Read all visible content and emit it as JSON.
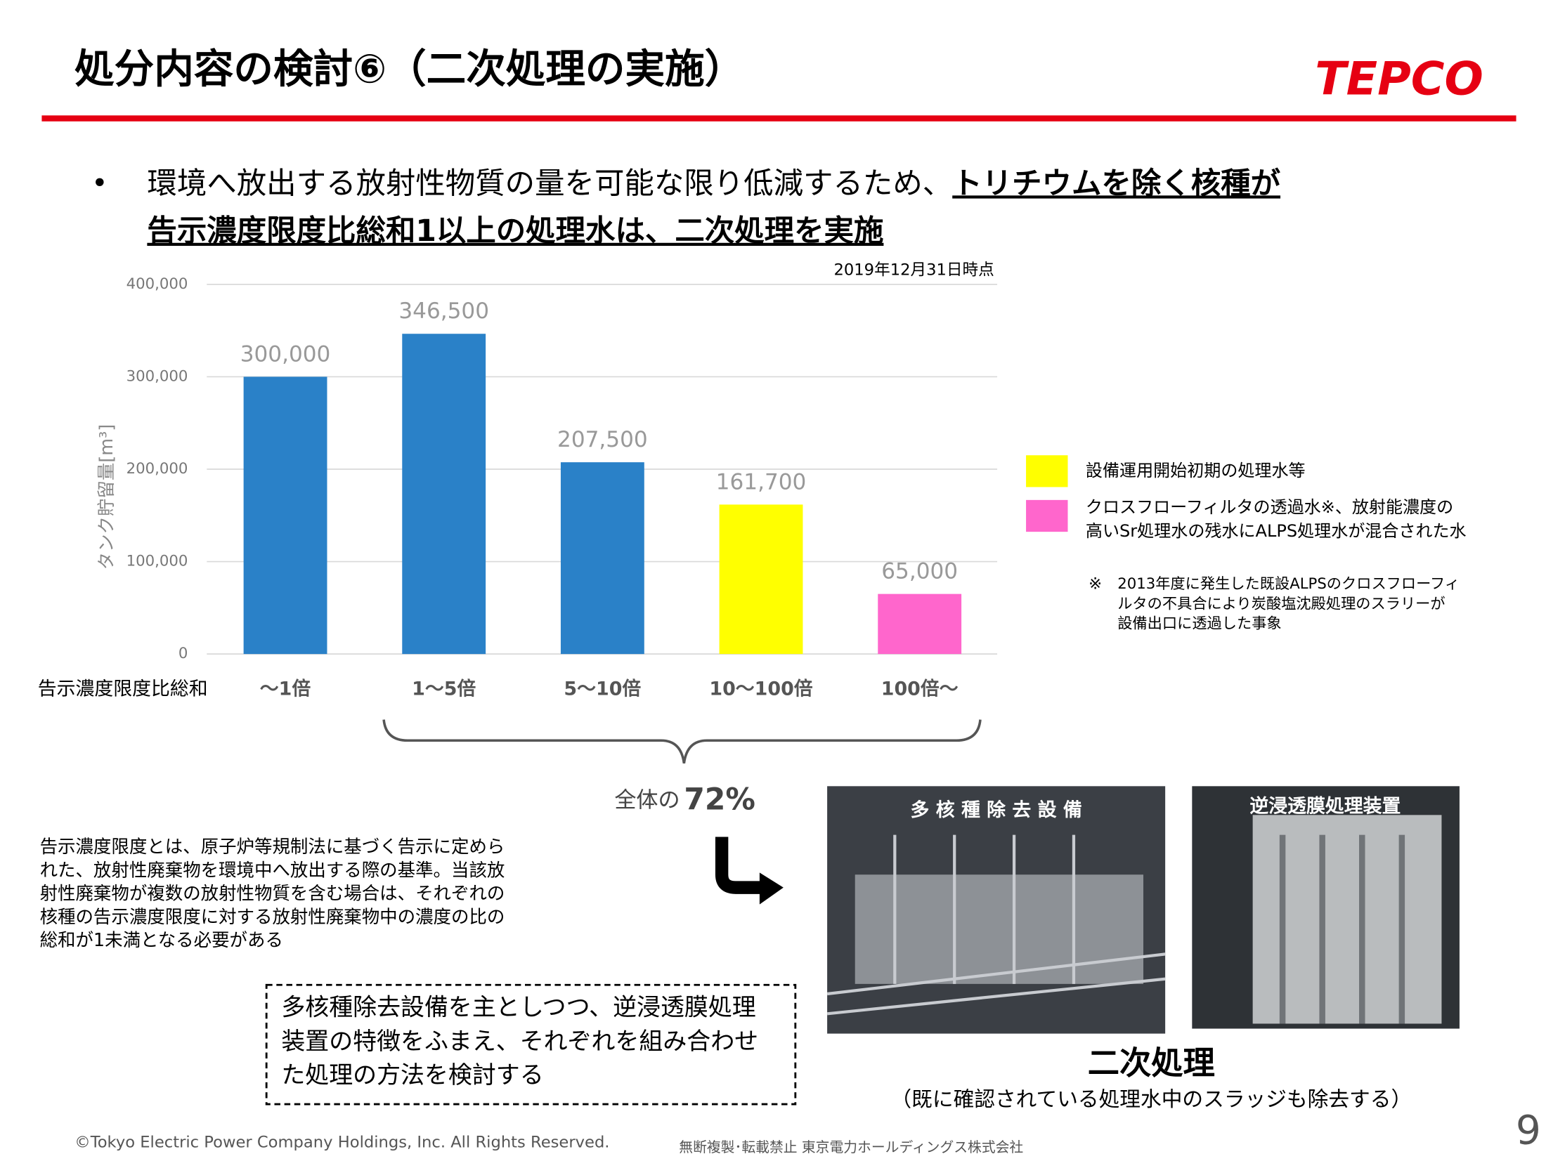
{
  "header": {
    "title": "処分内容の検討⑥（二次処理の実施）",
    "logo": "TEPCO"
  },
  "bullet": {
    "line1_normal": "環境へ放出する放射性物質の量を可能な限り低減するため、",
    "line1_bold": "トリチウムを除く核種が",
    "line2_bold": "告示濃度限度比総和1以上の処理水は、二次処理を実施"
  },
  "chart_data": {
    "type": "bar",
    "note": "2019年12月31日時点",
    "y_label": "タンク貯留量[m³]",
    "x_label": "告示濃度限度比総和",
    "categories": [
      "～1倍",
      "1～5倍",
      "5～10倍",
      "10～100倍",
      "100倍～"
    ],
    "values": [
      300000,
      346500,
      207500,
      161700,
      65000
    ],
    "value_labels": [
      "300,000",
      "346,500",
      "207,500",
      "161,700",
      "65,000"
    ],
    "colors": [
      "#2a81c8",
      "#2a81c8",
      "#2a81c8",
      "#ffff00",
      "#ff66cc"
    ],
    "ylim": [
      0,
      400000
    ],
    "yticks": [
      0,
      {
        "value": 100000,
        "label": "100,000"
      },
      {
        "value": 200000,
        "label": "200,000"
      },
      {
        "value": 300000,
        "label": "300,000"
      },
      {
        "value": 400000,
        "label": "400,000"
      }
    ],
    "grid": true
  },
  "legend": [
    {
      "color": "#ffff00",
      "lines": [
        "設備運用開始初期の処理水等"
      ]
    },
    {
      "color": "#ff66cc",
      "lines": [
        "クロスフローフィルタの透過水※、放射能濃度の",
        "高いSr処理水の残水にALPS処理水が混合された水"
      ]
    }
  ],
  "footnote": {
    "mark": "※",
    "lines": [
      "2013年度に発生した既設ALPSのクロスフローフィ",
      "ルタの不具合により炭酸塩沈殿処理のスラリーが",
      "設備出口に透過した事象"
    ]
  },
  "share": {
    "prefix": "全体の",
    "value": "72%"
  },
  "definition": [
    "告示濃度限度とは、原子炉等規制法に基づく告示に定めら",
    "れた、放射性廃棄物を環境中へ放出する際の基準。当該放",
    "射性廃棄物が複数の放射性物質を含む場合は、それぞれの",
    "核種の告示濃度限度に対する放射性廃棄物中の濃度の比の",
    "総和が1未満となる必要がある"
  ],
  "box": [
    "多核種除去設備を主としつつ、逆浸透膜処理",
    "装置の特徴をふまえ、それぞれを組み合わせ",
    "た処理の方法を検討する"
  ],
  "photos": [
    "多 核 種 除 去 設 備",
    "逆浸透膜処理装置"
  ],
  "secondary": {
    "title": "二次処理",
    "subtitle": "（既に確認されている処理水中のスラッジも除去する）"
  },
  "footer": {
    "copyright": "©Tokyo Electric Power Company Holdings, Inc.  All Rights Reserved.",
    "notice": "無断複製･転載禁止  東京電力ホールディングス株式会社",
    "page": "9"
  }
}
